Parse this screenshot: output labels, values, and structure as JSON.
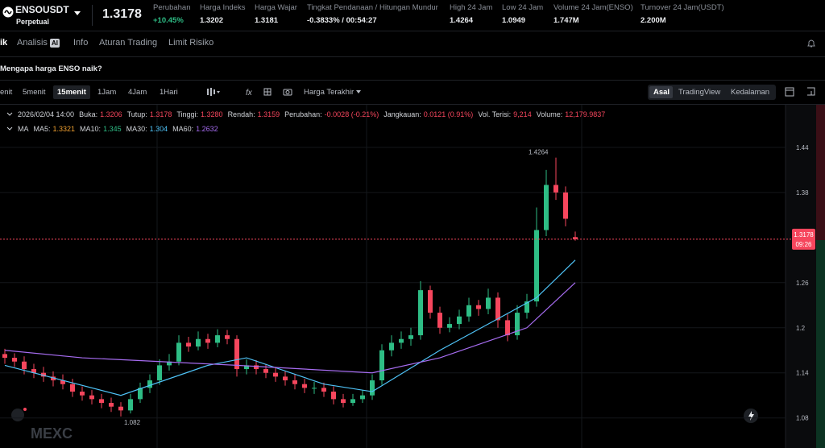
{
  "header": {
    "symbol": "ENSOUSDT",
    "contract": "Perpetual",
    "price": "1.3178",
    "stats": [
      {
        "label": "Perubahan",
        "value": "+10.45%"
      },
      {
        "label": "Harga Indeks",
        "value": "1.3202"
      },
      {
        "label": "Harga Wajar",
        "value": "1.3181"
      },
      {
        "label": "Tingkat Pendanaan / Hitungan Mundur",
        "value": "-0.3833% / 00:54:27"
      },
      {
        "label": "High 24 Jam",
        "value": "1.4264"
      },
      {
        "label": "Low 24 Jam",
        "value": "1.0949"
      },
      {
        "label": "Volume 24 Jam(ENSO)",
        "value": "1.747M"
      },
      {
        "label": "Turnover 24 Jam(USDT)",
        "value": "2.200M"
      }
    ]
  },
  "tabs": [
    "ik",
    "Analisis",
    "AI",
    "Info",
    "Aturan Trading",
    "Limit Risiko"
  ],
  "question": "Mengapa harga ENSO naik?",
  "toolbar": {
    "intervals": [
      "enit",
      "5menit",
      "15menit",
      "1Jam",
      "4Jam",
      "1Hari"
    ],
    "price_type": "Harga Terakhir",
    "views": [
      "Asal",
      "TradingView",
      "Kedalaman"
    ]
  },
  "info_line": {
    "date": "2026/02/04 14:00",
    "items": [
      {
        "label": "Buka:",
        "value": "1.3206"
      },
      {
        "label": "Tutup:",
        "value": "1.3178"
      },
      {
        "label": "Tinggi:",
        "value": "1.3280"
      },
      {
        "label": "Rendah:",
        "value": "1.3159"
      },
      {
        "label": "Perubahan:",
        "value": "-0.0028 (-0.21%)"
      },
      {
        "label": "Jangkauan:",
        "value": "0.0121 (0.91%)"
      },
      {
        "label": "Vol. Terisi:",
        "value": "9,214"
      },
      {
        "label": "Volume:",
        "value": "12,179.9837"
      }
    ]
  },
  "ma_legend": {
    "title": "MA",
    "items": [
      {
        "label": "MA5:",
        "value": "1.3321",
        "color": "#f0a030"
      },
      {
        "label": "MA10:",
        "value": "1.345",
        "color": "#2ebd85"
      },
      {
        "label": "MA30:",
        "value": "1.304",
        "color": "#4fc3f7"
      },
      {
        "label": "MA60:",
        "value": "1.2632",
        "color": "#a66cf0"
      }
    ]
  },
  "chart_data": {
    "type": "candlestick",
    "ylim": [
      1.04,
      1.4967
    ],
    "yticks": [
      1.08,
      1.14,
      1.2,
      1.26,
      1.38,
      1.44
    ],
    "up_color": "#2ebd85",
    "down_color": "#f6465d",
    "last_price": 1.3178,
    "countdown": "09:26",
    "high_mark": 1.4264,
    "low_mark": 1.082,
    "watermark": "MEXC",
    "candles": [
      [
        1.165,
        1.172,
        1.152,
        1.16
      ],
      [
        1.16,
        1.166,
        1.148,
        1.155
      ],
      [
        1.155,
        1.162,
        1.138,
        1.145
      ],
      [
        1.145,
        1.152,
        1.133,
        1.14
      ],
      [
        1.14,
        1.148,
        1.128,
        1.135
      ],
      [
        1.135,
        1.142,
        1.122,
        1.13
      ],
      [
        1.13,
        1.138,
        1.118,
        1.125
      ],
      [
        1.125,
        1.132,
        1.108,
        1.115
      ],
      [
        1.115,
        1.122,
        1.103,
        1.11
      ],
      [
        1.11,
        1.117,
        1.098,
        1.105
      ],
      [
        1.105,
        1.112,
        1.093,
        1.1
      ],
      [
        1.1,
        1.107,
        1.088,
        1.095
      ],
      [
        1.095,
        1.101,
        1.082,
        1.09
      ],
      [
        1.09,
        1.112,
        1.086,
        1.105
      ],
      [
        1.105,
        1.127,
        1.1,
        1.12
      ],
      [
        1.12,
        1.138,
        1.113,
        1.13
      ],
      [
        1.13,
        1.158,
        1.124,
        1.15
      ],
      [
        1.15,
        1.165,
        1.143,
        1.155
      ],
      [
        1.155,
        1.19,
        1.15,
        1.18
      ],
      [
        1.18,
        1.188,
        1.168,
        1.175
      ],
      [
        1.175,
        1.195,
        1.17,
        1.185
      ],
      [
        1.185,
        1.192,
        1.172,
        1.18
      ],
      [
        1.18,
        1.198,
        1.174,
        1.19
      ],
      [
        1.19,
        1.197,
        1.178,
        1.185
      ],
      [
        1.185,
        1.19,
        1.135,
        1.145
      ],
      [
        1.145,
        1.158,
        1.138,
        1.15
      ],
      [
        1.15,
        1.157,
        1.138,
        1.145
      ],
      [
        1.145,
        1.152,
        1.133,
        1.14
      ],
      [
        1.14,
        1.148,
        1.128,
        1.135
      ],
      [
        1.135,
        1.142,
        1.123,
        1.13
      ],
      [
        1.13,
        1.138,
        1.118,
        1.125
      ],
      [
        1.125,
        1.132,
        1.113,
        1.12
      ],
      [
        1.12,
        1.128,
        1.112,
        1.12
      ],
      [
        1.12,
        1.127,
        1.108,
        1.115
      ],
      [
        1.115,
        1.122,
        1.098,
        1.105
      ],
      [
        1.105,
        1.112,
        1.094,
        1.1
      ],
      [
        1.1,
        1.112,
        1.096,
        1.105
      ],
      [
        1.105,
        1.117,
        1.1,
        1.11
      ],
      [
        1.11,
        1.138,
        1.104,
        1.13
      ],
      [
        1.13,
        1.178,
        1.124,
        1.17
      ],
      [
        1.17,
        1.19,
        1.162,
        1.18
      ],
      [
        1.18,
        1.195,
        1.172,
        1.185
      ],
      [
        1.185,
        1.2,
        1.176,
        1.19
      ],
      [
        1.19,
        1.262,
        1.184,
        1.25
      ],
      [
        1.25,
        1.256,
        1.212,
        1.22
      ],
      [
        1.22,
        1.228,
        1.192,
        1.2
      ],
      [
        1.2,
        1.214,
        1.194,
        1.205
      ],
      [
        1.205,
        1.224,
        1.198,
        1.215
      ],
      [
        1.215,
        1.24,
        1.208,
        1.23
      ],
      [
        1.23,
        1.237,
        1.216,
        1.225
      ],
      [
        1.225,
        1.252,
        1.218,
        1.24
      ],
      [
        1.24,
        1.247,
        1.2,
        1.21
      ],
      [
        1.21,
        1.218,
        1.182,
        1.19
      ],
      [
        1.19,
        1.23,
        1.184,
        1.22
      ],
      [
        1.22,
        1.245,
        1.212,
        1.235
      ],
      [
        1.235,
        1.36,
        1.228,
        1.33
      ],
      [
        1.33,
        1.41,
        1.322,
        1.39
      ],
      [
        1.39,
        1.4264,
        1.37,
        1.38
      ],
      [
        1.38,
        1.388,
        1.335,
        1.345
      ],
      [
        1.3206,
        1.328,
        1.3159,
        1.3178
      ]
    ],
    "series": [
      {
        "name": "MA30",
        "color": "#4fc3f7",
        "x": [
          0,
          12,
          21,
          25,
          33,
          38,
          45,
          50,
          55,
          59
        ],
        "values": [
          1.15,
          1.11,
          1.15,
          1.16,
          1.125,
          1.115,
          1.17,
          1.205,
          1.24,
          1.29
        ]
      },
      {
        "name": "MA60",
        "color": "#a66cf0",
        "x": [
          0,
          8,
          24,
          38,
          45,
          54,
          59
        ],
        "values": [
          1.17,
          1.16,
          1.15,
          1.14,
          1.16,
          1.2,
          1.26
        ]
      }
    ]
  }
}
